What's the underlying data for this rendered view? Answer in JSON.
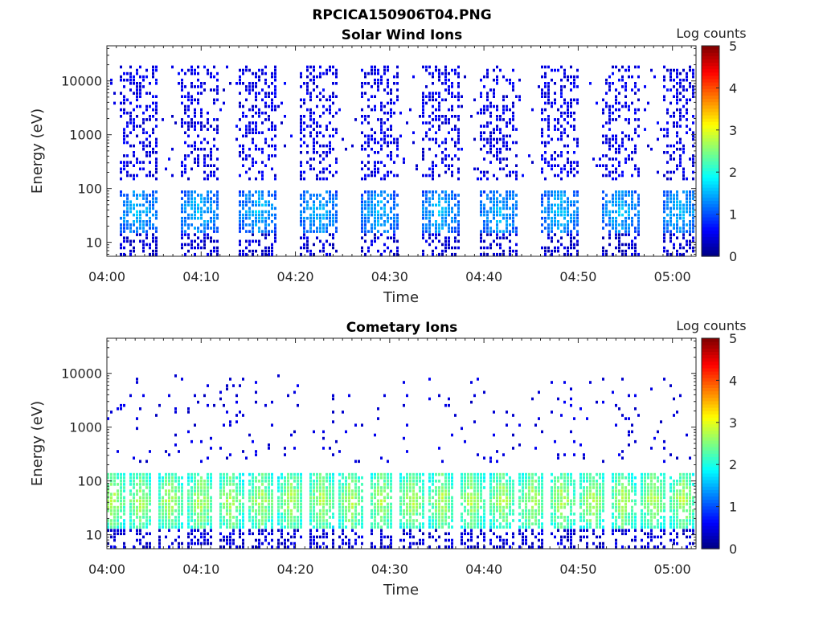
{
  "figure_title": "RPCICA150906T04.PNG",
  "colors": {
    "background": "#ffffff",
    "axes": "#262626",
    "colormap": "jet"
  },
  "chart_data": [
    {
      "type": "heatmap",
      "title": "Solar Wind Ions",
      "xlabel": "Time",
      "ylabel": "Energy (eV)",
      "y_scale": "log",
      "y_range_ev": [
        5.5,
        45000
      ],
      "y_ticks": [
        {
          "value": 10,
          "label": "10"
        },
        {
          "value": 100,
          "label": "100"
        },
        {
          "value": 1000,
          "label": "1000"
        },
        {
          "value": 10000,
          "label": "10000"
        }
      ],
      "x_range_minutes": [
        0,
        62.5
      ],
      "x_ticks": [
        {
          "value": 0,
          "label": "04:00"
        },
        {
          "value": 10,
          "label": "04:10"
        },
        {
          "value": 20,
          "label": "04:20"
        },
        {
          "value": 30,
          "label": "04:30"
        },
        {
          "value": 40,
          "label": "04:40"
        },
        {
          "value": 50,
          "label": "04:50"
        },
        {
          "value": 60,
          "label": "05:00"
        }
      ],
      "colorbar": {
        "label": "Log counts",
        "range": [
          0,
          5
        ],
        "ticks": [
          "0",
          "1",
          "2",
          "3",
          "4",
          "5"
        ]
      },
      "pattern": {
        "sweep_period_min": 6.4,
        "sweep_centers_min": [
          3.2,
          9.6,
          16.0,
          22.4,
          28.8,
          35.2,
          41.6,
          48.0,
          54.4,
          60.8
        ],
        "core_energy_ev": [
          15,
          90
        ],
        "core_log_counts": [
          0.6,
          1.6
        ],
        "sparse_energy_ev": [
          150,
          20000
        ],
        "sparse_log_counts": [
          0.3,
          0.7
        ]
      }
    },
    {
      "type": "heatmap",
      "title": "Cometary Ions",
      "xlabel": "Time",
      "ylabel": "Energy (eV)",
      "y_scale": "log",
      "y_range_ev": [
        5.5,
        45000
      ],
      "y_ticks": [
        {
          "value": 10,
          "label": "10"
        },
        {
          "value": 100,
          "label": "100"
        },
        {
          "value": 1000,
          "label": "1000"
        },
        {
          "value": 10000,
          "label": "10000"
        }
      ],
      "x_range_minutes": [
        0,
        62.5
      ],
      "x_ticks": [
        {
          "value": 0,
          "label": "04:00"
        },
        {
          "value": 10,
          "label": "04:10"
        },
        {
          "value": 20,
          "label": "04:20"
        },
        {
          "value": 30,
          "label": "04:30"
        },
        {
          "value": 40,
          "label": "04:40"
        },
        {
          "value": 50,
          "label": "04:50"
        },
        {
          "value": 60,
          "label": "05:00"
        }
      ],
      "colorbar": {
        "label": "Log counts",
        "range": [
          0,
          5
        ],
        "ticks": [
          "0",
          "1",
          "2",
          "3",
          "4",
          "5"
        ]
      },
      "pattern": {
        "sweep_period_min": 3.2,
        "sweep_centers_min": [
          0.5,
          3.4,
          6.6,
          9.8,
          13.0,
          16.2,
          19.4,
          22.6,
          25.8,
          29.0,
          32.2,
          35.4,
          38.6,
          41.8,
          45.0,
          48.2,
          51.4,
          54.6,
          57.8,
          61.0
        ],
        "core_energy_ev": [
          12,
          150
        ],
        "core_log_counts": [
          1.5,
          2.8
        ],
        "sparse_energy_ev": [
          200,
          10000
        ],
        "sparse_log_counts": [
          0.3,
          0.6
        ]
      }
    }
  ]
}
